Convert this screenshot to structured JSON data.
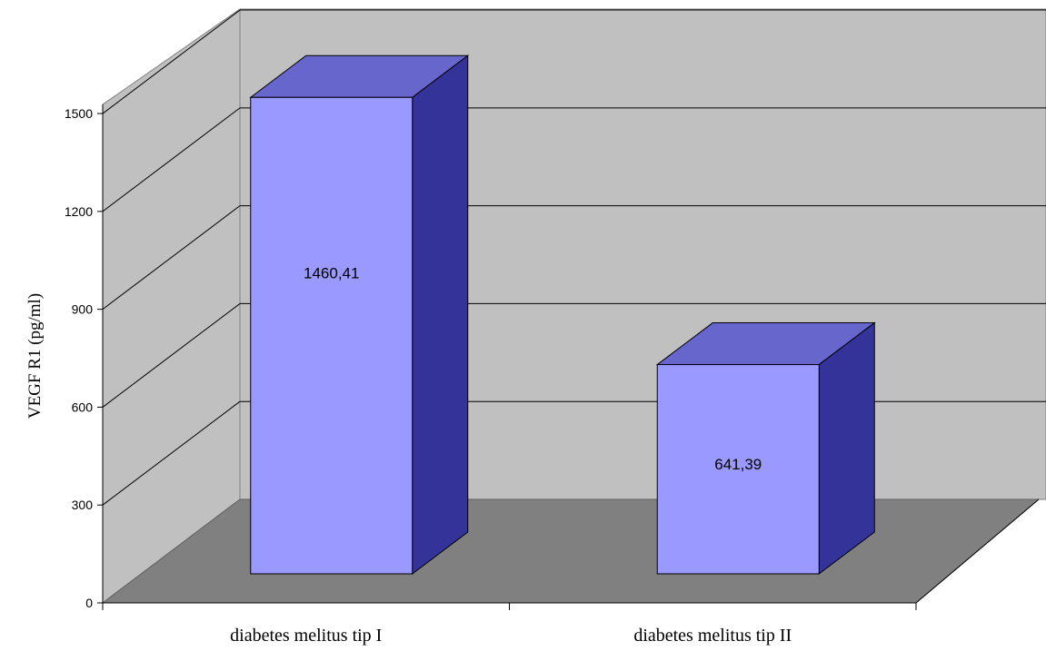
{
  "chart_data": {
    "type": "bar",
    "three_d": true,
    "categories": [
      "diabetes melitus tip I",
      "diabetes melitus tip II"
    ],
    "values": [
      1460.41,
      641.39
    ],
    "data_labels": [
      "1460,41",
      "641,39"
    ],
    "title": "",
    "xlabel": "",
    "ylabel": "VEGF R1 (pg/ml)",
    "ylim": [
      0,
      1500
    ],
    "yticks": [
      0,
      300,
      600,
      900,
      1200,
      1500
    ],
    "ytick_labels": [
      "0",
      "300",
      "600",
      "900",
      "1200",
      "1500"
    ],
    "grid": true,
    "legend": "none",
    "colors": {
      "bar_front": "#9999ff",
      "bar_top": "#6666cc",
      "bar_side": "#333399",
      "wall_back": "#c0c0c0",
      "wall_side": "#c0c0c0",
      "floor": "#808080",
      "grid": "#000000"
    }
  }
}
